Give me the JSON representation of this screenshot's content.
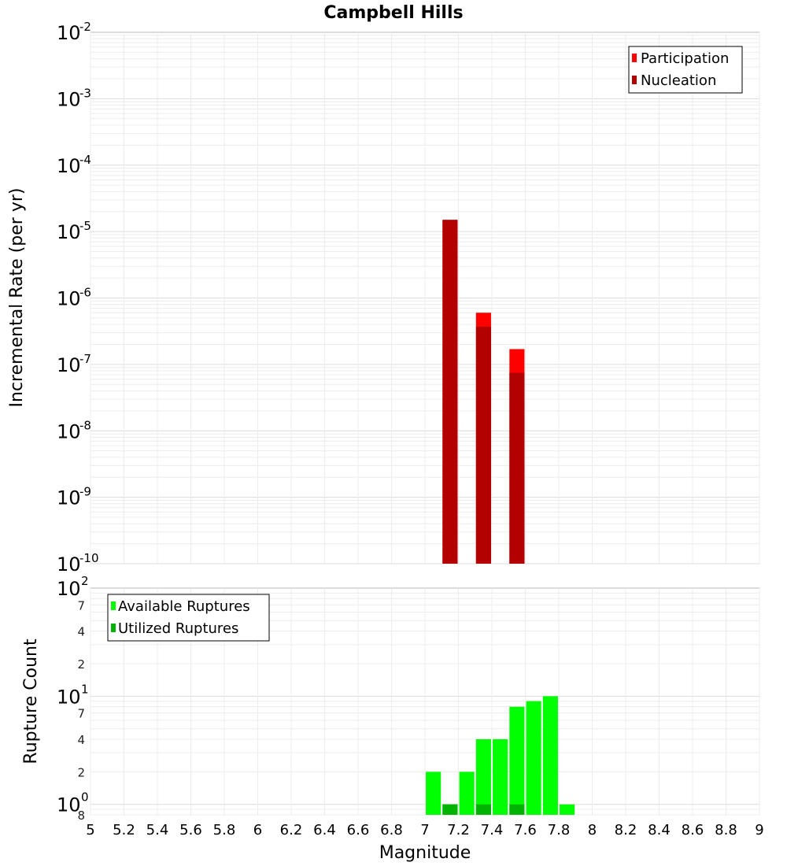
{
  "chart_data": [
    {
      "type": "bar",
      "title": "Campbell Hills",
      "xlabel": "",
      "ylabel": "Incremental Rate (per yr)",
      "yscale": "log",
      "xlim": [
        5,
        9
      ],
      "ylim": [
        1e-10,
        0.01
      ],
      "grid": true,
      "legend_position": "top-right",
      "y_major_ticks": [
        {
          "base": "10",
          "exp": "-10",
          "value": 1e-10
        },
        {
          "base": "10",
          "exp": "-9",
          "value": 1e-09
        },
        {
          "base": "10",
          "exp": "-8",
          "value": 1e-08
        },
        {
          "base": "10",
          "exp": "-7",
          "value": 1e-07
        },
        {
          "base": "10",
          "exp": "-6",
          "value": 1e-06
        },
        {
          "base": "10",
          "exp": "-5",
          "value": 1e-05
        },
        {
          "base": "10",
          "exp": "-4",
          "value": 0.0001
        },
        {
          "base": "10",
          "exp": "-3",
          "value": 0.001
        },
        {
          "base": "10",
          "exp": "-2",
          "value": 0.01
        }
      ],
      "bar_width": 0.09,
      "series": [
        {
          "name": "Participation",
          "color": "#ff0000",
          "x": [
            7.15,
            7.35,
            7.55
          ],
          "values": [
            1.5e-05,
            6e-07,
            1.7e-07
          ]
        },
        {
          "name": "Nucleation",
          "color": "#b30000",
          "x": [
            7.15,
            7.35,
            7.55
          ],
          "values": [
            1.5e-05,
            3.7e-07,
            7.5e-08
          ]
        }
      ]
    },
    {
      "type": "bar",
      "title": "",
      "xlabel": "Magnitude",
      "ylabel": "Rupture Count",
      "yscale": "log",
      "xlim": [
        5,
        9
      ],
      "ylim": [
        0.8,
        100
      ],
      "grid": true,
      "legend_position": "top-left",
      "x_ticks": [
        "5",
        "5.2",
        "5.4",
        "5.6",
        "5.8",
        "6",
        "6.2",
        "6.4",
        "6.6",
        "6.8",
        "7",
        "7.2",
        "7.4",
        "7.6",
        "7.8",
        "8",
        "8.2",
        "8.4",
        "8.6",
        "8.8",
        "9"
      ],
      "y_major_ticks": [
        {
          "base": "10",
          "exp": "0",
          "value": 1
        },
        {
          "base": "10",
          "exp": "1",
          "value": 10
        },
        {
          "base": "10",
          "exp": "2",
          "value": 100
        }
      ],
      "y_minor_ticks": [
        {
          "label": "8",
          "value": 0.8
        },
        {
          "label": "2",
          "value": 2
        },
        {
          "label": "4",
          "value": 4
        },
        {
          "label": "7",
          "value": 7
        },
        {
          "label": "2",
          "value": 20
        },
        {
          "label": "4",
          "value": 40
        },
        {
          "label": "7",
          "value": 70
        }
      ],
      "bar_width": 0.09,
      "series": [
        {
          "name": "Available Ruptures",
          "color": "#00ff00",
          "x": [
            7.05,
            7.15,
            7.25,
            7.35,
            7.45,
            7.55,
            7.65,
            7.75,
            7.85
          ],
          "values": [
            2,
            1,
            2,
            4,
            4,
            8,
            9,
            10,
            1
          ]
        },
        {
          "name": "Utilized Ruptures",
          "color": "#00b300",
          "x": [
            7.15,
            7.35,
            7.55
          ],
          "values": [
            1,
            1,
            1
          ]
        }
      ]
    }
  ]
}
